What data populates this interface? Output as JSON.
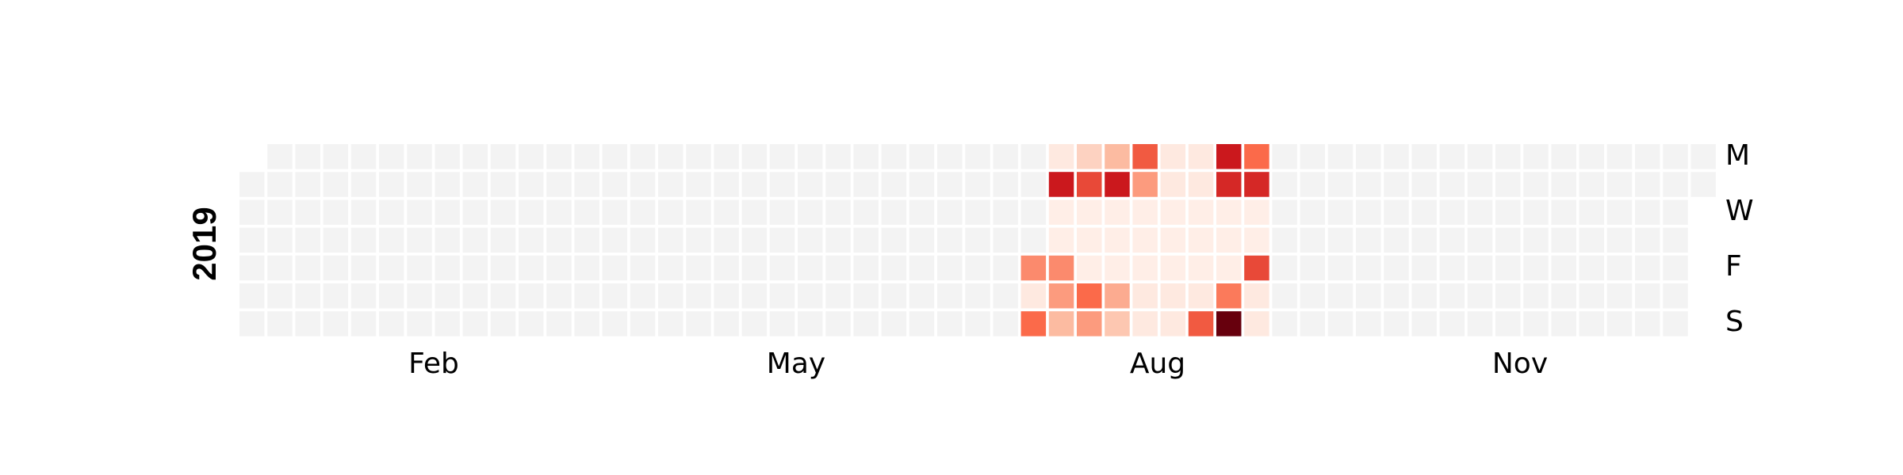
{
  "chart_data": {
    "type": "heatmap",
    "year": "2019",
    "month_labels": [
      "Feb",
      "May",
      "Aug",
      "Nov"
    ],
    "weekday_labels": [
      "M",
      "W",
      "F",
      "S"
    ],
    "empty_color": "#f3f3f3",
    "colormap": [
      "#fff5f0",
      "#fcbba1",
      "#fb6a4a",
      "#cb181d",
      "#67000d"
    ],
    "value_range": [
      0,
      1
    ],
    "rows": [
      "Mon",
      "Tue",
      "Wed",
      "Thu",
      "Fri",
      "Sat",
      "Sun"
    ],
    "active_weeks": [
      28,
      29,
      30,
      31,
      32,
      33,
      34,
      35,
      36,
      37
    ],
    "active_values": [
      [
        null,
        0.05,
        0.15,
        0.25,
        0.55,
        0.05,
        0.05,
        0.75,
        0.5,
        null
      ],
      [
        null,
        0.75,
        0.6,
        0.75,
        0.35,
        0.05,
        0.05,
        0.7,
        0.7,
        null
      ],
      [
        null,
        0.03,
        0.03,
        0.03,
        0.03,
        0.03,
        0.03,
        0.03,
        0.03,
        null
      ],
      [
        null,
        0.03,
        0.03,
        0.03,
        0.03,
        0.03,
        0.03,
        0.03,
        0.03,
        null
      ],
      [
        0.4,
        0.4,
        0.03,
        0.03,
        0.03,
        0.03,
        0.03,
        0.03,
        0.6,
        null
      ],
      [
        0.05,
        0.35,
        0.5,
        0.3,
        0.05,
        0.05,
        0.05,
        0.45,
        0.05,
        null
      ],
      [
        0.5,
        0.25,
        0.35,
        0.2,
        0.05,
        0.05,
        0.55,
        1.0,
        0.05,
        null
      ]
    ]
  }
}
